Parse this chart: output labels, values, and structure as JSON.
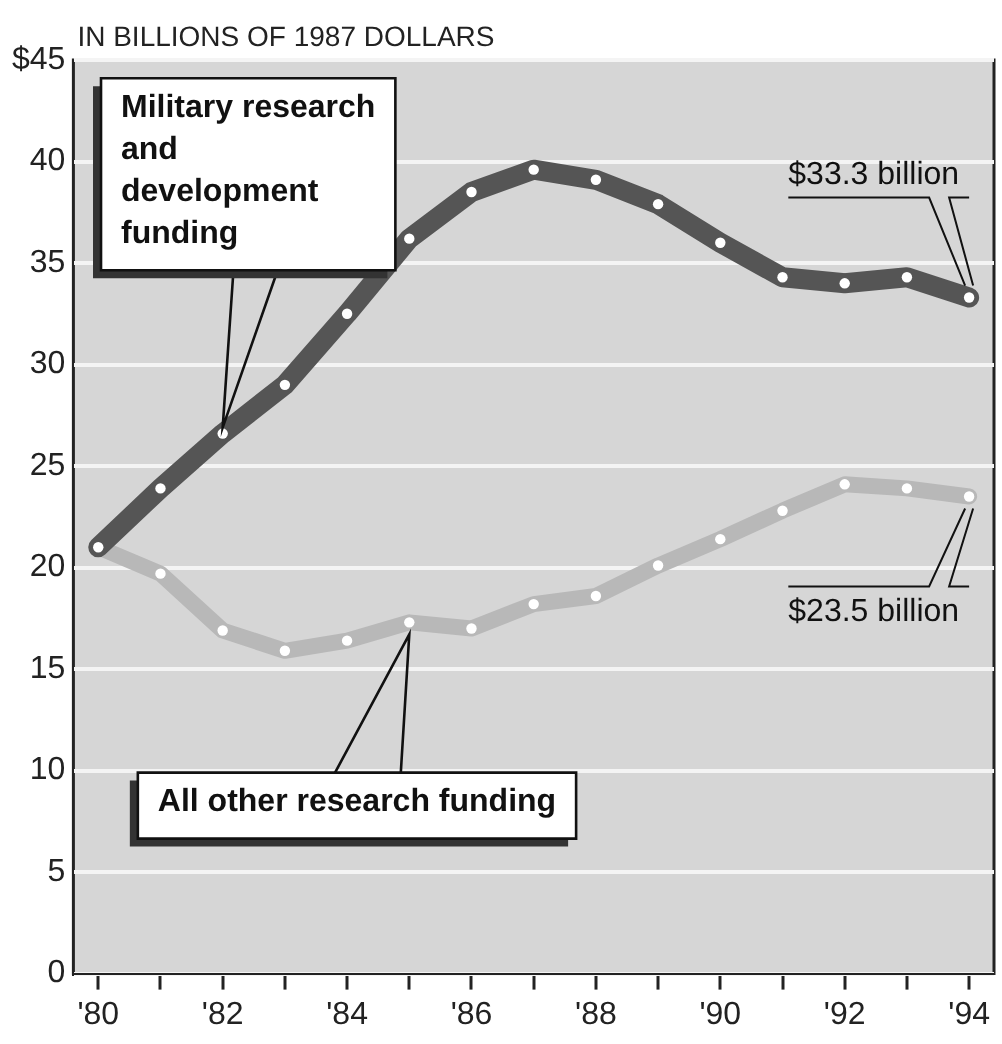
{
  "chart_data": {
    "type": "line",
    "ylabel": "IN BILLIONS OF 1987 DOLLARS",
    "x": [
      1980,
      1981,
      1982,
      1983,
      1984,
      1985,
      1986,
      1987,
      1988,
      1989,
      1990,
      1991,
      1992,
      1993,
      1994
    ],
    "series": [
      {
        "name": "Military research and development funding",
        "color": "#555555",
        "values": [
          21.0,
          23.9,
          26.6,
          29.0,
          32.5,
          36.2,
          38.5,
          39.6,
          39.1,
          37.9,
          36.0,
          34.3,
          34.0,
          34.3,
          33.3
        ]
      },
      {
        "name": "All other research funding",
        "color": "#b8b8b8",
        "values": [
          21.0,
          19.7,
          16.9,
          15.9,
          16.4,
          17.3,
          17.0,
          18.2,
          18.6,
          20.1,
          21.4,
          22.8,
          24.1,
          23.9,
          23.5
        ]
      }
    ],
    "xlim": [
      1979.6,
      1994.4
    ],
    "xticks": [
      {
        "value": 1980,
        "label": "'80"
      },
      {
        "value": 1981,
        "label": null
      },
      {
        "value": 1982,
        "label": "'82"
      },
      {
        "value": 1983,
        "label": null
      },
      {
        "value": 1984,
        "label": "'84"
      },
      {
        "value": 1985,
        "label": null
      },
      {
        "value": 1986,
        "label": "'86"
      },
      {
        "value": 1987,
        "label": null
      },
      {
        "value": 1988,
        "label": "'88"
      },
      {
        "value": 1989,
        "label": null
      },
      {
        "value": 1990,
        "label": "'90"
      },
      {
        "value": 1991,
        "label": null
      },
      {
        "value": 1992,
        "label": "'92"
      },
      {
        "value": 1993,
        "label": null
      },
      {
        "value": 1994,
        "label": "'94"
      }
    ],
    "ylim": [
      0,
      45
    ],
    "yticks": [
      0,
      5,
      10,
      15,
      20,
      25,
      30,
      35,
      40,
      {
        "value": 45,
        "label": "$45"
      }
    ],
    "annotations": [
      {
        "text": "$33.3 billion",
        "x": 1994,
        "y": 33.3
      },
      {
        "text": "$23.5 billion",
        "x": 1994,
        "y": 23.5
      }
    ],
    "grid": "y",
    "legend": false,
    "marker": "circle",
    "line_style": "solid"
  }
}
